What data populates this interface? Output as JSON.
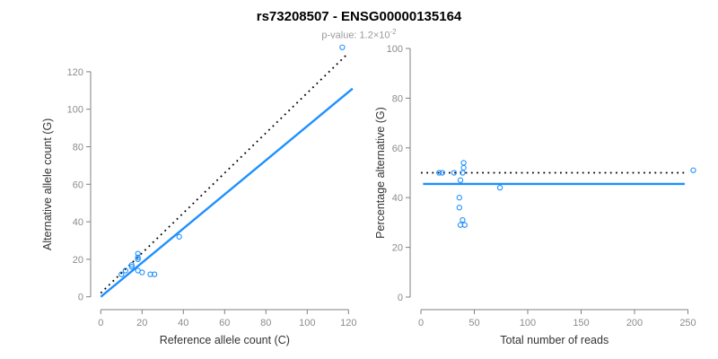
{
  "title": "rs73208507 - ENSG00000135164",
  "subtitle": {
    "prefix": "p-value: 1.2×10",
    "exponent": "-2"
  },
  "colors": {
    "point": "#1E90FF",
    "fit_line": "#1E90FF",
    "reference_line": "#000000",
    "axis": "#808080",
    "tick_label": "#8c8c8c",
    "axis_title": "#333333",
    "title": "#000000",
    "subtitle": "#9a9a9a"
  },
  "chart_data": [
    {
      "type": "scatter",
      "name": "allele-counts-plot",
      "xlabel": "Reference allele count (C)",
      "ylabel": "Alternative allele count (G)",
      "xlim": [
        0,
        120
      ],
      "ylim": [
        0,
        120
      ],
      "xticks": [
        0,
        20,
        40,
        60,
        80,
        100,
        120
      ],
      "yticks": [
        0,
        20,
        40,
        60,
        80,
        100,
        120
      ],
      "grid": false,
      "points": [
        [
          10,
          12
        ],
        [
          12,
          14
        ],
        [
          15,
          17
        ],
        [
          18,
          14
        ],
        [
          20,
          13
        ],
        [
          24,
          12
        ],
        [
          26,
          12
        ],
        [
          18,
          20
        ],
        [
          18,
          21
        ],
        [
          18,
          23
        ],
        [
          15,
          16
        ],
        [
          38,
          32
        ],
        [
          117,
          133
        ]
      ],
      "lines": [
        {
          "name": "identity-line",
          "style": "dotted",
          "color": "#000000",
          "x1": 0,
          "y1": 2,
          "x2": 120,
          "y2": 130
        },
        {
          "name": "fit-line",
          "style": "solid",
          "color": "#1E90FF",
          "x1": 0,
          "y1": 0,
          "x2": 122,
          "y2": 111
        }
      ]
    },
    {
      "type": "scatter",
      "name": "percentage-alternative-plot",
      "xlabel": "Total number of reads",
      "ylabel": "Percentage alternative (G)",
      "xlim": [
        0,
        250
      ],
      "ylim": [
        0,
        100
      ],
      "xticks": [
        0,
        50,
        100,
        150,
        200,
        250
      ],
      "yticks": [
        0,
        20,
        40,
        60,
        80,
        100
      ],
      "grid": false,
      "points": [
        [
          17,
          50
        ],
        [
          20,
          50
        ],
        [
          31,
          50
        ],
        [
          39,
          50
        ],
        [
          40,
          52
        ],
        [
          40,
          54
        ],
        [
          37,
          47
        ],
        [
          36,
          40
        ],
        [
          36,
          36
        ],
        [
          37,
          29
        ],
        [
          39,
          31
        ],
        [
          41,
          29
        ],
        [
          74,
          44
        ],
        [
          255,
          51
        ]
      ],
      "lines": [
        {
          "name": "expected-50pct-line",
          "style": "dotted",
          "color": "#000000",
          "x1": 0,
          "y1": 50,
          "x2": 247,
          "y2": 50
        },
        {
          "name": "fit-line",
          "style": "solid",
          "color": "#1E90FF",
          "x1": 2,
          "y1": 45.5,
          "x2": 247,
          "y2": 45.5
        }
      ]
    }
  ]
}
